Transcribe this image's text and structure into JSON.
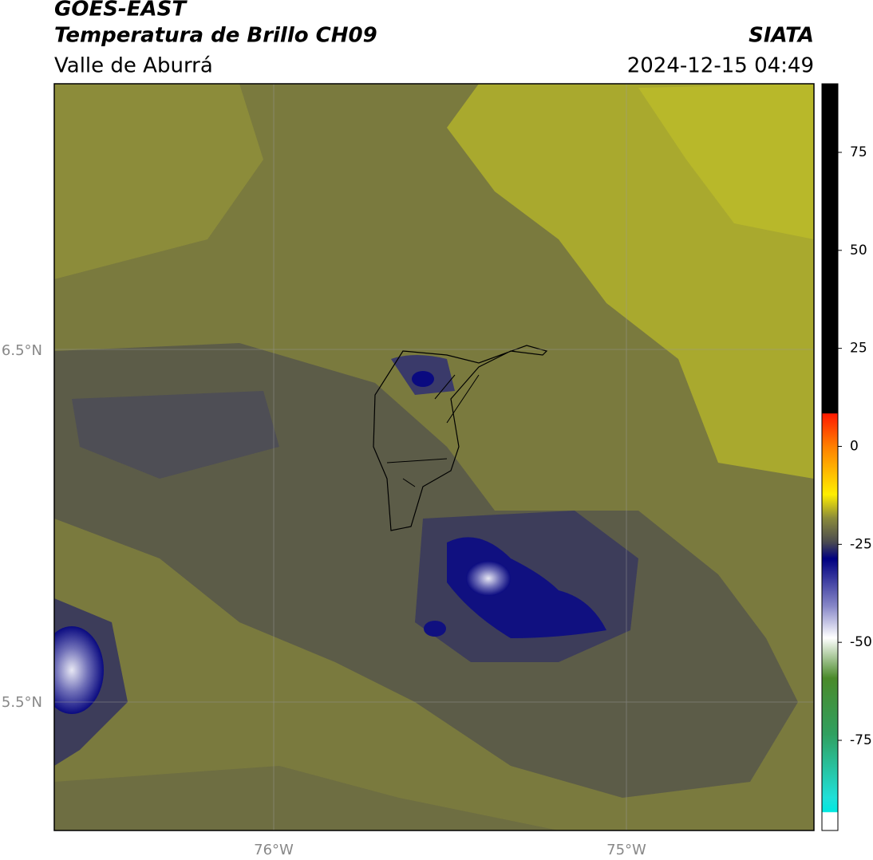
{
  "header": {
    "title": "GOES-EAST",
    "subtitle": "Temperatura de Brillo CH09",
    "region": "Valle de Aburrá",
    "source": "SIATA",
    "datetime": "2024-12-15 04:49"
  },
  "map": {
    "lat_labels": [
      "6.5°N",
      "5.5°N"
    ],
    "lon_labels": [
      "76°W",
      "75°W"
    ]
  },
  "colorbar": {
    "lim": [
      -98,
      92.5
    ],
    "ticks": [
      75,
      50,
      25,
      0,
      -25,
      -50,
      -75
    ]
  }
}
